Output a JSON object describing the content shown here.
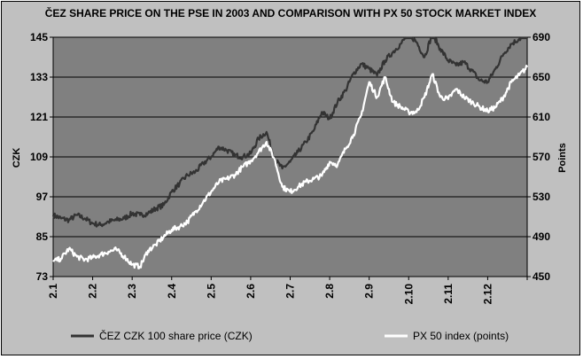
{
  "chart_data": {
    "type": "line",
    "title": "ČEZ SHARE PRICE ON THE PSE IN 2003 AND COMPARISON WITH PX 50 STOCK MARKET INDEX",
    "ylabel": "CZK",
    "y2label": "Points",
    "x_ticks": [
      "2.1",
      "2.2",
      "2.3",
      "2.4",
      "2.5",
      "2.6",
      "2.7",
      "2.8",
      "2.9",
      "2.10",
      "2.11",
      "2.12"
    ],
    "ylim": [
      73,
      145
    ],
    "yticks": [
      73,
      85,
      97,
      109,
      121,
      133,
      145
    ],
    "y2lim": [
      450,
      690
    ],
    "y2ticks": [
      450,
      490,
      530,
      570,
      610,
      650,
      690
    ],
    "grid": true,
    "legend_position": "bottom",
    "colors": {
      "plot_bg": "#808080",
      "frame_bg": "#c0c0c0",
      "cez_line": "#333333",
      "px50_line": "#ffffff"
    },
    "series": [
      {
        "name": "ČEZ CZK 100 share price (CZK)",
        "axis": "left",
        "color": "#333333",
        "x": [
          0,
          0.2,
          0.4,
          0.6,
          0.8,
          1.0,
          1.2,
          1.4,
          1.6,
          1.8,
          2.0,
          2.2,
          2.4,
          2.6,
          2.8,
          3.0,
          3.2,
          3.4,
          3.6,
          3.8,
          4.0,
          4.2,
          4.4,
          4.6,
          4.8,
          5.0,
          5.2,
          5.4,
          5.6,
          5.8,
          6.0,
          6.2,
          6.4,
          6.6,
          6.8,
          7.0,
          7.2,
          7.4,
          7.6,
          7.8,
          8.0,
          8.2,
          8.4,
          8.6,
          8.8,
          9.0,
          9.2,
          9.4,
          9.6,
          9.8,
          10.0,
          10.2,
          10.4,
          10.6,
          10.8,
          11.0,
          11.2,
          11.4,
          11.6,
          11.8,
          12.0
        ],
        "values": [
          91.5,
          90.5,
          90,
          91.5,
          90.5,
          89,
          88.5,
          89.5,
          90,
          90.5,
          92,
          91.5,
          92,
          93.5,
          94.5,
          98.5,
          101,
          103.5,
          104.5,
          107,
          109,
          112,
          111,
          109.5,
          109,
          110,
          114.5,
          116.5,
          108.5,
          105.5,
          107.5,
          110.5,
          113.5,
          117,
          122.5,
          120.5,
          125.5,
          129,
          134,
          137,
          135.5,
          133.5,
          138,
          140.5,
          143,
          146,
          143.5,
          139,
          146,
          141.5,
          138,
          136.5,
          137.5,
          135,
          132,
          131.5,
          135.5,
          140,
          143,
          144.5,
          145.5
        ]
      },
      {
        "name": "PX 50 index (points)",
        "axis": "right",
        "color": "#ffffff",
        "x": [
          0,
          0.2,
          0.4,
          0.6,
          0.8,
          1.0,
          1.2,
          1.4,
          1.6,
          1.8,
          2.0,
          2.2,
          2.4,
          2.6,
          2.8,
          3.0,
          3.2,
          3.4,
          3.6,
          3.8,
          4.0,
          4.2,
          4.4,
          4.6,
          4.8,
          5.0,
          5.2,
          5.4,
          5.6,
          5.8,
          6.0,
          6.2,
          6.4,
          6.6,
          6.8,
          7.0,
          7.2,
          7.4,
          7.6,
          7.8,
          8.0,
          8.2,
          8.4,
          8.6,
          8.8,
          9.0,
          9.2,
          9.4,
          9.6,
          9.8,
          10.0,
          10.2,
          10.4,
          10.6,
          10.8,
          11.0,
          11.2,
          11.4,
          11.6,
          11.8,
          12.0
        ],
        "values": [
          465,
          468,
          478,
          470,
          467,
          469,
          472,
          475,
          477,
          470,
          462,
          460,
          476,
          482,
          490,
          497,
          500,
          505,
          515,
          525,
          535,
          545,
          548,
          552,
          560,
          566,
          575,
          585,
          568,
          540,
          535,
          540,
          545,
          548,
          551,
          565,
          562,
          578,
          592,
          612,
          645,
          630,
          650,
          625,
          620,
          615,
          615,
          630,
          653,
          630,
          628,
          638,
          630,
          625,
          620,
          616,
          620,
          630,
          645,
          652,
          660
        ]
      }
    ]
  }
}
